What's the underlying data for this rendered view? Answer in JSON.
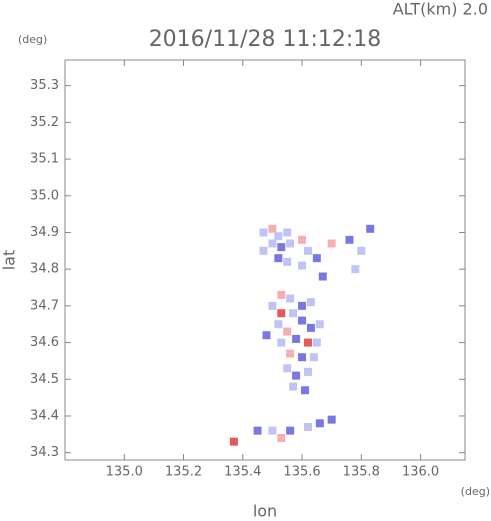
{
  "chart_data": {
    "type": "scatter",
    "title": "2016/11/28 11:12:18",
    "subtitle": "ALT(km) 2.0",
    "x_label": "lon",
    "y_label": "lat",
    "x_unit": "(deg)",
    "y_unit": "(deg)",
    "xlim": [
      134.8,
      136.15
    ],
    "ylim": [
      34.28,
      35.37
    ],
    "xticks": [
      {
        "value": 135,
        "label": "135.0"
      },
      135.2,
      135.4,
      135.6,
      135.8,
      {
        "value": 136,
        "label": "136.0"
      }
    ],
    "yticks": [
      34.3,
      34.4,
      34.5,
      34.6,
      34.7,
      34.8,
      34.9,
      {
        "value": 35,
        "label": "35.0"
      },
      35.1,
      35.2,
      35.3
    ],
    "grid": false,
    "x": [
      135.47,
      135.5,
      135.52,
      135.55,
      135.5,
      135.53,
      135.56,
      135.47,
      135.52,
      135.55,
      135.6,
      135.62,
      135.65,
      135.6,
      135.67,
      135.7,
      135.76,
      135.8,
      135.83,
      135.78,
      135.53,
      135.56,
      135.5,
      135.53,
      135.57,
      135.6,
      135.63,
      135.6,
      135.63,
      135.66,
      135.52,
      135.55,
      135.58,
      135.62,
      135.65,
      135.53,
      135.56,
      135.6,
      135.64,
      135.55,
      135.58,
      135.62,
      135.57,
      135.61,
      135.48,
      135.37,
      135.45,
      135.5,
      135.56,
      135.62,
      135.66,
      135.7,
      135.53
    ],
    "y": [
      34.9,
      34.91,
      34.89,
      34.9,
      34.87,
      34.86,
      34.87,
      34.85,
      34.83,
      34.82,
      34.88,
      34.85,
      34.83,
      34.81,
      34.78,
      34.87,
      34.88,
      34.85,
      34.91,
      34.8,
      34.73,
      34.72,
      34.7,
      34.68,
      34.68,
      34.7,
      34.71,
      34.66,
      34.64,
      34.65,
      34.65,
      34.63,
      34.61,
      34.6,
      34.6,
      34.6,
      34.57,
      34.56,
      34.56,
      34.53,
      34.51,
      34.52,
      34.48,
      34.47,
      34.62,
      34.33,
      34.36,
      34.36,
      34.36,
      34.37,
      34.38,
      34.39,
      34.34
    ],
    "colors": [
      "#c0c4f4",
      "#f4b0b0",
      "#c0c4f4",
      "#c0c4f4",
      "#c0c4f4",
      "#7878e0",
      "#c0c4f4",
      "#c0c4f4",
      "#7878e0",
      "#c0c4f4",
      "#f4b0b0",
      "#c0c4f4",
      "#7878e0",
      "#c0c4f4",
      "#7878e0",
      "#f4b0b0",
      "#7878e0",
      "#c0c4f4",
      "#7878e0",
      "#c0c4f4",
      "#f4b0b0",
      "#c0c4f4",
      "#c0c4f4",
      "#e85858",
      "#c0c4f4",
      "#7878e0",
      "#c0c4f4",
      "#7878e0",
      "#7878e0",
      "#c0c4f4",
      "#c0c4f4",
      "#f4b0b0",
      "#7878e0",
      "#e85858",
      "#c0c4f4",
      "#c0c4f4",
      "#f4b0b0",
      "#7878e0",
      "#c0c4f4",
      "#c0c4f4",
      "#7878e0",
      "#c0c4f4",
      "#c0c4f4",
      "#7878e0",
      "#7878e0",
      "#e85858",
      "#7878e0",
      "#c0c4f4",
      "#7878e0",
      "#c0c4f4",
      "#7878e0",
      "#7878e0",
      "#f4b0b0"
    ]
  }
}
